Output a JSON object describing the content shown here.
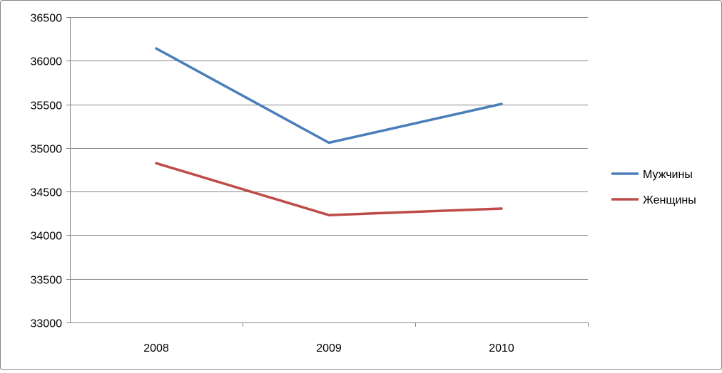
{
  "chart_data": {
    "type": "line",
    "title": "",
    "xlabel": "",
    "ylabel": "",
    "categories": [
      "2008",
      "2009",
      "2010"
    ],
    "ylim": [
      33000,
      36500
    ],
    "yticks": [
      33000,
      33500,
      34000,
      34500,
      35000,
      35500,
      36000,
      36500
    ],
    "yticks_labels": [
      "33000",
      "33500",
      "34000",
      "34500",
      "35000",
      "35500",
      "36000",
      "36500"
    ],
    "grid": true,
    "legend_position": "right",
    "series": [
      {
        "name": "Мужчины",
        "values": [
          36140,
          35060,
          35505
        ],
        "color": "#4a7ebb"
      },
      {
        "name": "Женщины",
        "values": [
          34825,
          34230,
          34305
        ],
        "color": "#be4b48"
      }
    ]
  }
}
